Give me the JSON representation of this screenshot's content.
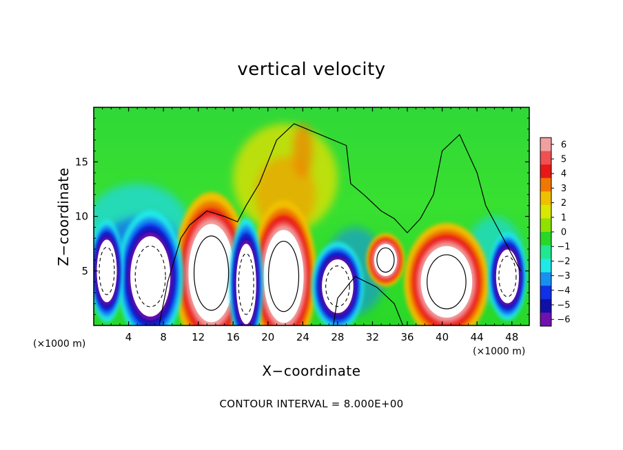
{
  "chart_data": {
    "type": "heatmap",
    "title": "vertical velocity",
    "xlabel": "X−coordinate",
    "ylabel": "Z−coordinate",
    "x_scale_label": "(×1000 m)",
    "footer": "CONTOUR INTERVAL = 8.000E+00",
    "xlim": [
      0,
      50
    ],
    "ylim": [
      0,
      20
    ],
    "xticks": [
      4,
      8,
      12,
      16,
      20,
      24,
      28,
      32,
      36,
      40,
      44,
      48
    ],
    "yticks": [
      5,
      10,
      15
    ],
    "colorbar": {
      "ticks": [
        6,
        5,
        4,
        3,
        2,
        1,
        0,
        -1,
        -2,
        -3,
        -4,
        -5,
        -6
      ],
      "tick_labels": [
        "6",
        "5",
        "4",
        "3",
        "2",
        "1",
        "0",
        "−1",
        "−2",
        "−3",
        "−4",
        "−5",
        "−6"
      ],
      "colors": [
        "#f0a0a0",
        "#f05050",
        "#e81818",
        "#f07800",
        "#f0c000",
        "#d8e800",
        "#90e000",
        "#28d828",
        "#20e890",
        "#20e8e8",
        "#1890f0",
        "#1030e8",
        "#1010a8",
        "#7010b0"
      ],
      "range": [
        -6,
        6
      ]
    },
    "features": [
      {
        "kind": "updraft",
        "x": 13.5,
        "z": 4.8,
        "rx": 3.2,
        "rz": 5.5
      },
      {
        "kind": "updraft",
        "x": 21.8,
        "z": 4.5,
        "rx": 2.8,
        "rz": 5.2
      },
      {
        "kind": "updraft",
        "x": 40.5,
        "z": 4.0,
        "rx": 3.6,
        "rz": 4.0
      },
      {
        "kind": "updraft",
        "x": 33.5,
        "z": 6.0,
        "rx": 1.6,
        "rz": 1.8
      },
      {
        "kind": "downdraft",
        "x": 6.5,
        "z": 4.5,
        "rx": 2.8,
        "rz": 4.5
      },
      {
        "kind": "downdraft",
        "x": 17.5,
        "z": 3.8,
        "rx": 1.4,
        "rz": 4.5
      },
      {
        "kind": "downdraft",
        "x": 28.0,
        "z": 3.6,
        "rx": 2.2,
        "rz": 3.0
      },
      {
        "kind": "downdraft",
        "x": 1.5,
        "z": 5.0,
        "rx": 1.4,
        "rz": 3.5
      },
      {
        "kind": "downdraft",
        "x": 47.5,
        "z": 4.5,
        "rx": 1.6,
        "rz": 3.0
      }
    ]
  }
}
